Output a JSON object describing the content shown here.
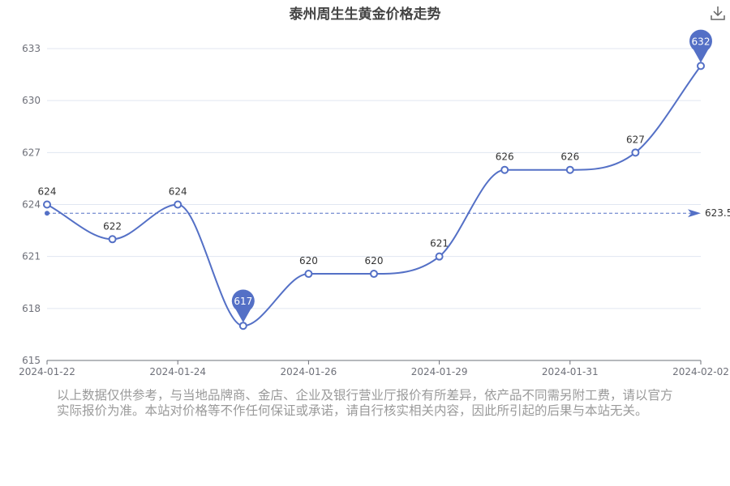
{
  "title": "泰州周生生黄金价格走势",
  "toolbar": {
    "download_icon": "download-icon"
  },
  "disclaimer": "以上数据仅供参考，与当地品牌商、金店、企业及银行营业厅报价有所差异，依产品不同需另附工费，请以官方实际报价为准。本站对价格等不作任何保证或承诺，请自行核实相关内容，因此所引起的后果与本站无关。",
  "chart_data": {
    "type": "line",
    "title": "泰州周生生黄金价格走势",
    "xlabel": "",
    "ylabel": "",
    "x_ticks": [
      "2024-01-22",
      "2024-01-24",
      "2024-01-26",
      "2024-01-29",
      "2024-01-31",
      "2024-02-02"
    ],
    "y_ticks": [
      615,
      618,
      621,
      624,
      627,
      630,
      633
    ],
    "ylim": [
      615,
      633
    ],
    "grid": true,
    "smooth": true,
    "colors": {
      "line": "#5470c6",
      "grid": "#e0e6f1",
      "axis": "#6e7079",
      "faded_label": "#999999"
    },
    "series": [
      {
        "values": [
          624,
          622,
          624,
          617,
          620,
          620,
          621,
          626,
          626,
          627,
          632
        ],
        "point_labels": [
          "624",
          "622",
          "624",
          "617",
          "620",
          "620",
          "621",
          "626",
          "626",
          "627",
          "632"
        ],
        "average": {
          "value": 623.5,
          "label": "623.5"
        },
        "max_pin": {
          "value": 632,
          "label": "632"
        },
        "min_pin": {
          "value": 617,
          "label": "617"
        }
      }
    ]
  }
}
